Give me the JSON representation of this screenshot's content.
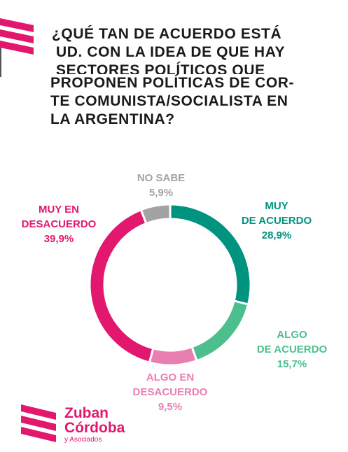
{
  "header": {
    "title_lines": [
      "¿QUÉ TAN DE ACUERDO ESTÁ",
      "UD. CON LA IDEA DE QUE HAY",
      "SECTORES POLÍTICOS QUE",
      "PROPONEN POLÍTICAS DE COR-",
      "TE COMUNISTA/SOCIALISTA EN",
      "LA ARGENTINA?"
    ]
  },
  "colors": {
    "brand_pink": "#e2186f",
    "muy_acuerdo": "#00937f",
    "algo_acuerdo": "#4dbf8e",
    "algo_desacuerdo": "#e97fb0",
    "muy_desacuerdo": "#e2186f",
    "no_sabe": "#a3a3a3"
  },
  "chart_data": {
    "type": "pie",
    "variant": "donut",
    "slices": [
      {
        "label_lines": [
          "MUY",
          "DE ACUERDO"
        ],
        "value": 28.9,
        "display": "28,9%",
        "color": "#00937f"
      },
      {
        "label_lines": [
          "ALGO",
          "DE ACUERDO"
        ],
        "value": 15.7,
        "display": "15,7%",
        "color": "#4dbf8e"
      },
      {
        "label_lines": [
          "ALGO EN",
          "DESACUERDO"
        ],
        "value": 9.5,
        "display": "9,5%",
        "color": "#e97fb0"
      },
      {
        "label_lines": [
          "MUY EN",
          "DESACUERDO"
        ],
        "value": 39.9,
        "display": "39,9%",
        "color": "#e2186f"
      },
      {
        "label_lines": [
          "NO SABE"
        ],
        "value": 5.9,
        "display": "5,9%",
        "color": "#a3a3a3"
      }
    ]
  },
  "logo": {
    "name_line1": "Zuban",
    "name_line2": "Córdoba",
    "name_line3": "y Asociados"
  }
}
